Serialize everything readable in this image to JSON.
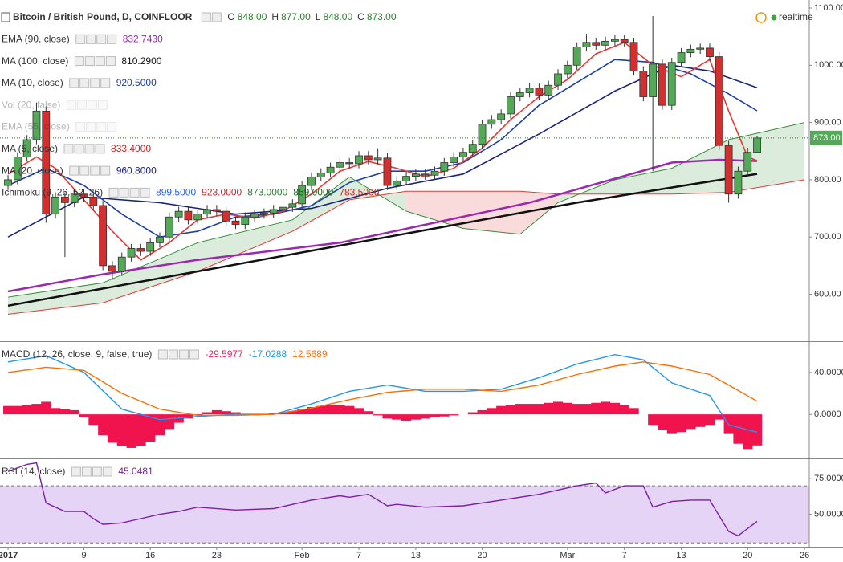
{
  "header": {
    "symbol": "Bitcoin / British Pound, D, COINFLOOR",
    "ohlc": [
      {
        "k": "O",
        "v": "848.00"
      },
      {
        "k": "H",
        "v": "877.00"
      },
      {
        "k": "L",
        "v": "848.00"
      },
      {
        "k": "C",
        "v": "873.00"
      }
    ],
    "status": "realtime"
  },
  "legends": [
    [
      {
        "name": "EMA (90, close)",
        "values": [
          "832.7430"
        ],
        "colors": [
          "#9c27b0"
        ],
        "faded": false
      },
      {
        "name": "MA (100, close)",
        "values": [
          "810.2900"
        ],
        "colors": [
          "#111111"
        ],
        "faded": false
      },
      {
        "name": "MA (10, close)",
        "values": [
          "920.5000"
        ],
        "colors": [
          "#1e3fa8"
        ],
        "faded": false
      },
      {
        "name": "Vol (20, false)",
        "values": [],
        "colors": [],
        "faded": true
      },
      {
        "name": "EMA (55, close)",
        "values": [],
        "colors": [],
        "faded": true
      },
      {
        "name": "MA (5, close)",
        "values": [
          "833.4000"
        ],
        "colors": [
          "#c62828"
        ],
        "faded": false
      },
      {
        "name": "MA (20, close)",
        "values": [
          "960.8000"
        ],
        "colors": [
          "#1a237e"
        ],
        "faded": false
      },
      {
        "name": "Ichimoku (9, 26, 52, 26)",
        "values": [
          "899.5000",
          "923.0000",
          "873.0000",
          "859.0000",
          "783.5000"
        ],
        "colors": [
          "#2962ff",
          "#c62828",
          "#2e7d32",
          "#1b5e20",
          "#c62828"
        ],
        "faded": false
      }
    ],
    [
      {
        "name": "MACD (12, 26, close, 9, false, true)",
        "values": [
          "-29.5977",
          "-17.0288",
          "12.5689"
        ],
        "colors": [
          "#e91e63",
          "#2196f3",
          "#ff6d00"
        ],
        "faded": false
      }
    ],
    [
      {
        "name": "RSI (14, close)",
        "values": [
          "45.0481"
        ],
        "colors": [
          "#7b1fa2"
        ],
        "faded": false
      }
    ]
  ],
  "chart_data": [
    {
      "type": "candlestick",
      "xlim": [
        -0.85,
        84.5
      ],
      "xticks": [
        {
          "value": 0,
          "label": "2017"
        },
        {
          "value": 8,
          "label": "9"
        },
        {
          "value": 15,
          "label": "16"
        },
        {
          "value": 22,
          "label": "23"
        },
        {
          "value": 31,
          "label": "Feb"
        },
        {
          "value": 37,
          "label": "7"
        },
        {
          "value": 43,
          "label": "13"
        },
        {
          "value": 50,
          "label": "20"
        },
        {
          "value": 59,
          "label": "Mar"
        },
        {
          "value": 65,
          "label": "7"
        },
        {
          "value": 71,
          "label": "13"
        },
        {
          "value": 78,
          "label": "20"
        },
        {
          "value": 84,
          "label": "26"
        }
      ],
      "ylim": [
        518,
        1114
      ],
      "yticks": [
        {
          "value": 1100,
          "label": "1100.00"
        },
        {
          "value": 1000,
          "label": "1000.00"
        },
        {
          "value": 900,
          "label": "900.00"
        },
        {
          "value": 800,
          "label": "800.00"
        },
        {
          "value": 700,
          "label": "700.00"
        },
        {
          "value": 600,
          "label": "600.00"
        }
      ],
      "up_color": "#53a957",
      "down_color": "#d32f2f",
      "last_label": "873.00",
      "x": [
        0,
        1,
        2,
        3,
        4,
        5,
        6,
        7,
        8,
        9,
        10,
        11,
        12,
        13,
        14,
        15,
        16,
        17,
        18,
        19,
        20,
        21,
        22,
        23,
        24,
        25,
        26,
        27,
        28,
        29,
        30,
        31,
        32,
        33,
        34,
        35,
        36,
        37,
        38,
        39,
        40,
        41,
        42,
        43,
        44,
        45,
        46,
        47,
        48,
        49,
        50,
        51,
        52,
        53,
        54,
        55,
        56,
        57,
        58,
        59,
        60,
        61,
        62,
        63,
        64,
        65,
        66,
        67,
        68,
        69,
        70,
        71,
        72,
        73,
        74,
        75,
        76,
        77,
        78,
        79
      ],
      "open": [
        790,
        800,
        840,
        870,
        920,
        740,
        770,
        760,
        775,
        770,
        755,
        650,
        640,
        665,
        680,
        675,
        690,
        700,
        735,
        745,
        730,
        740,
        748,
        745,
        728,
        722,
        735,
        740,
        742,
        748,
        752,
        758,
        790,
        805,
        812,
        822,
        830,
        828,
        842,
        835,
        838,
        790,
        798,
        806,
        810,
        808,
        815,
        830,
        840,
        848,
        862,
        897,
        905,
        915,
        945,
        952,
        960,
        948,
        965,
        985,
        1000,
        1032,
        1040,
        1035,
        1042,
        1045,
        1040,
        990,
        945,
        1002,
        930,
        1005,
        1022,
        1028,
        1030,
        1015,
        860,
        775,
        815,
        848
      ],
      "high": [
        808,
        848,
        878,
        935,
        928,
        778,
        778,
        783,
        783,
        778,
        763,
        658,
        673,
        688,
        688,
        698,
        708,
        743,
        753,
        753,
        748,
        756,
        756,
        753,
        736,
        743,
        748,
        750,
        756,
        760,
        766,
        798,
        813,
        820,
        830,
        838,
        838,
        850,
        850,
        855,
        846,
        806,
        814,
        818,
        818,
        823,
        838,
        848,
        856,
        870,
        905,
        913,
        923,
        953,
        960,
        968,
        968,
        973,
        993,
        1008,
        1040,
        1055,
        1048,
        1050,
        1053,
        1053,
        1048,
        998,
        1086,
        1010,
        1013,
        1030,
        1036,
        1038,
        1038,
        1023,
        868,
        823,
        856,
        877
      ],
      "low": [
        782,
        792,
        832,
        862,
        725,
        732,
        665,
        752,
        762,
        747,
        642,
        625,
        632,
        657,
        667,
        667,
        682,
        692,
        727,
        722,
        722,
        732,
        737,
        720,
        714,
        714,
        727,
        732,
        734,
        740,
        744,
        750,
        782,
        797,
        804,
        814,
        820,
        820,
        827,
        827,
        782,
        782,
        790,
        798,
        800,
        800,
        807,
        822,
        832,
        840,
        854,
        889,
        897,
        907,
        937,
        944,
        940,
        940,
        957,
        977,
        992,
        1024,
        1027,
        1027,
        1034,
        1032,
        982,
        937,
        815,
        922,
        922,
        997,
        1014,
        1020,
        1007,
        852,
        760,
        767,
        807,
        848
      ],
      "close": [
        800,
        840,
        870,
        920,
        740,
        770,
        760,
        775,
        770,
        755,
        650,
        640,
        665,
        680,
        675,
        690,
        700,
        735,
        745,
        730,
        740,
        748,
        745,
        728,
        722,
        735,
        740,
        742,
        748,
        752,
        758,
        790,
        805,
        812,
        822,
        830,
        828,
        842,
        835,
        838,
        790,
        798,
        806,
        810,
        808,
        815,
        830,
        840,
        848,
        862,
        897,
        905,
        915,
        945,
        952,
        960,
        948,
        965,
        985,
        1000,
        1032,
        1040,
        1035,
        1042,
        1045,
        1040,
        990,
        945,
        1002,
        930,
        1005,
        1022,
        1028,
        1030,
        1015,
        860,
        775,
        815,
        848,
        873
      ],
      "cloud": {
        "x": [
          0,
          10,
          20,
          30,
          36,
          42,
          48,
          54,
          58,
          64,
          70,
          76,
          84
        ],
        "span_a": [
          595,
          620,
          690,
          730,
          805,
          745,
          715,
          705,
          760,
          800,
          820,
          870,
          900
        ],
        "span_b": [
          565,
          585,
          640,
          710,
          765,
          780,
          780,
          780,
          775,
          775,
          775,
          778,
          800
        ],
        "color_a": "#388e3c",
        "color_b": "#e53935"
      },
      "series": [
        {
          "color": "#111111",
          "x": [
            0,
            20,
            40,
            60,
            79
          ],
          "values": [
            580,
            640,
            700,
            760,
            810.29
          ]
        },
        {
          "color": "#9c27b0",
          "x": [
            0,
            10,
            20,
            35,
            55,
            70,
            75,
            79
          ],
          "values": [
            605,
            635,
            660,
            690,
            760,
            830,
            835,
            832.743
          ]
        },
        {
          "color": "#1a237e",
          "x": [
            0,
            8,
            16,
            24,
            32,
            40,
            48,
            56,
            64,
            70,
            74,
            79
          ],
          "values": [
            700,
            770,
            760,
            740,
            750,
            785,
            810,
            880,
            955,
            1000,
            990,
            960.8
          ]
        },
        {
          "color": "#1e3fa8",
          "x": [
            0,
            4,
            8,
            12,
            16,
            20,
            24,
            28,
            32,
            36,
            40,
            44,
            48,
            52,
            56,
            60,
            64,
            68,
            72,
            76,
            79
          ],
          "values": [
            790,
            820,
            790,
            740,
            700,
            710,
            735,
            740,
            755,
            795,
            815,
            815,
            830,
            870,
            930,
            970,
            1010,
            1005,
            985,
            950,
            920.5
          ]
        },
        {
          "color": "#e53935",
          "x": [
            0,
            3,
            5,
            8,
            11,
            14,
            17,
            20,
            23,
            26,
            29,
            32,
            35,
            38,
            41,
            44,
            47,
            50,
            53,
            56,
            59,
            62,
            65,
            68,
            71,
            74,
            76,
            78,
            79
          ],
          "values": [
            810,
            840,
            820,
            765,
            710,
            660,
            690,
            730,
            740,
            733,
            745,
            775,
            815,
            832,
            820,
            805,
            820,
            855,
            905,
            945,
            975,
            1020,
            1040,
            1000,
            980,
            1010,
            920,
            840,
            833.4
          ]
        }
      ]
    },
    {
      "type": "macd",
      "ylim": [
        -42,
        69
      ],
      "yticks": [
        {
          "value": 40,
          "label": "40.0000"
        },
        {
          "value": 0,
          "label": "0.0000"
        }
      ],
      "histogram": {
        "color": "#f0134d",
        "values": [
          8,
          8,
          9,
          10,
          12,
          6,
          5,
          4,
          -3,
          -10,
          -20,
          -27,
          -30,
          -32,
          -30,
          -26,
          -20,
          -14,
          -8,
          -4,
          -1,
          2,
          4,
          3,
          2,
          0,
          -1,
          0,
          1,
          2,
          3,
          5,
          7,
          8,
          9,
          9,
          8,
          6,
          3,
          -1,
          -4,
          -5,
          -6,
          -5,
          -4,
          -3,
          -2,
          -1,
          0,
          2,
          4,
          6,
          8,
          9,
          10,
          10,
          10,
          11,
          12,
          11,
          10,
          10,
          11,
          12,
          11,
          9,
          6,
          0,
          -10,
          -15,
          -18,
          -17,
          -14,
          -12,
          -10,
          -5,
          -18,
          -28,
          -33,
          -29.5977
        ]
      },
      "series": [
        {
          "color": "#2196f3",
          "x": [
            0,
            4,
            8,
            12,
            16,
            20,
            24,
            28,
            32,
            36,
            40,
            44,
            48,
            52,
            56,
            60,
            64,
            67,
            70,
            74,
            76,
            79
          ],
          "values": [
            50,
            56,
            40,
            5,
            -5,
            -2,
            0,
            0,
            10,
            22,
            28,
            22,
            22,
            24,
            35,
            48,
            57,
            52,
            30,
            18,
            -10,
            -17.0288
          ]
        },
        {
          "color": "#ff6d00",
          "x": [
            0,
            4,
            8,
            12,
            16,
            20,
            24,
            28,
            32,
            36,
            40,
            44,
            48,
            52,
            56,
            60,
            64,
            67,
            70,
            74,
            76,
            79
          ],
          "values": [
            40,
            45,
            42,
            20,
            5,
            -1,
            -1,
            0,
            6,
            14,
            21,
            24,
            24,
            22,
            28,
            38,
            46,
            50,
            46,
            38,
            28,
            12.5689
          ]
        }
      ]
    },
    {
      "type": "rsi",
      "ylim": [
        27.3,
        88.6
      ],
      "yticks": [
        {
          "value": 75,
          "label": "75.0000"
        },
        {
          "value": 50,
          "label": "50.0000"
        }
      ],
      "band": [
        30,
        70
      ],
      "band_color": "#e6d4f7",
      "series": [
        {
          "color": "#7b1fa2",
          "x": [
            0,
            2,
            3,
            4,
            6,
            8,
            9,
            10,
            12,
            14,
            16,
            18,
            20,
            24,
            28,
            32,
            35,
            36,
            38,
            40,
            41,
            44,
            48,
            52,
            56,
            60,
            62,
            63,
            65,
            67,
            68,
            70,
            72,
            74,
            76,
            77,
            79
          ],
          "values": [
            80,
            85,
            86,
            58,
            52,
            52,
            47,
            43,
            44,
            47,
            50,
            52,
            55,
            53,
            54,
            60,
            63,
            62,
            64,
            56,
            57,
            55,
            56,
            60,
            64,
            70,
            72,
            65,
            70,
            70,
            55,
            59,
            60,
            60,
            38,
            35,
            45.0481
          ]
        }
      ]
    }
  ]
}
